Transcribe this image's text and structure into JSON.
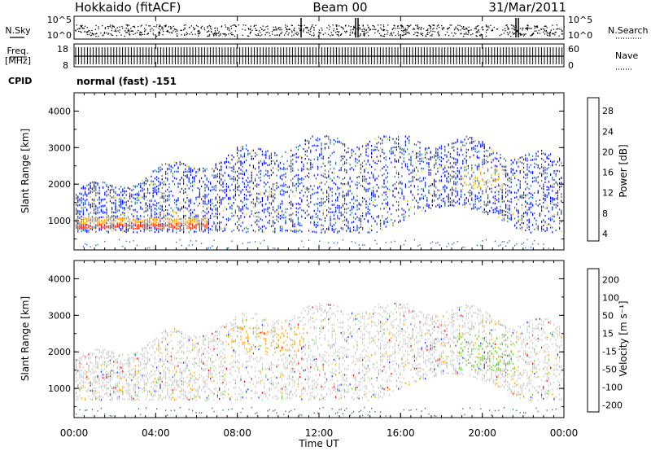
{
  "header": {
    "station": "Hokkaido (fitACF)",
    "beam": "Beam 00",
    "date": "31/Mar/2011"
  },
  "noise_panel": {
    "left_label": "N.Sky",
    "right_label": "N.Search",
    "left_ticks": [
      "10^5",
      "10^0"
    ],
    "right_ticks": [
      "10^5",
      "10^0"
    ]
  },
  "freq_panel": {
    "left_label_line1": "Freq.",
    "left_label_line2": "[MHz]",
    "right_label": "Nave",
    "left_ticks": [
      "18",
      "8"
    ],
    "right_ticks": [
      "60",
      "0"
    ]
  },
  "cpid": {
    "label": "CPID",
    "value": "normal (fast) -151"
  },
  "x_axis": {
    "label": "Time UT",
    "ticks": [
      "00:00",
      "04:00",
      "08:00",
      "12:00",
      "16:00",
      "20:00",
      "00:00"
    ],
    "range_hours": [
      0,
      24
    ]
  },
  "chart_data": [
    {
      "type": "heatmap",
      "quantity": "Power",
      "ylabel": "Slant Range [km]",
      "y_ticks": [
        1000,
        2000,
        3000,
        4000
      ],
      "ylim": [
        200,
        4500
      ],
      "colorbar": {
        "label": "Power [dB]",
        "ticks": [
          "28",
          "24",
          "20",
          "16",
          "12",
          "8",
          "4"
        ],
        "colors": [
          "#ff0000",
          "#ff6a00",
          "#ffa500",
          "#f2c800",
          "#2e8b57",
          "#1f5fbf",
          "#0000ff"
        ]
      },
      "features": [
        {
          "name": "strong near-range echo band",
          "time_h": [
            0,
            6.2
          ],
          "range_km": [
            800,
            1100
          ],
          "power_db": 22
        },
        {
          "name": "broad backscatter region",
          "time_h": [
            0,
            24
          ],
          "range_km": [
            1100,
            3300
          ],
          "power_db": 6
        },
        {
          "name": "enhanced arc",
          "time_h": [
            19.0,
            20.8
          ],
          "range_km": [
            1900,
            2500
          ],
          "power_db": 18
        }
      ]
    },
    {
      "type": "heatmap",
      "quantity": "Velocity",
      "ylabel": "Slant Range [km]",
      "y_ticks": [
        1000,
        2000,
        3000,
        4000
      ],
      "ylim": [
        200,
        4500
      ],
      "colorbar": {
        "label": "Velocity [m s⁻¹]",
        "ticks": [
          "200",
          "100",
          "50",
          "15",
          "-15",
          "-50",
          "-100",
          "-200"
        ],
        "colors": [
          "#1e3cff",
          "#3b66c4",
          "#1e7a3c",
          "#66cc33",
          "#cccccc",
          "#ffa500",
          "#ff6a00",
          "#ff0000"
        ]
      },
      "features": [
        {
          "name": "ground/low velocity band",
          "time_h": [
            0,
            24
          ],
          "range_km": [
            800,
            3300
          ],
          "velocity_ms": 0
        },
        {
          "name": "negative velocity patch",
          "time_h": [
            7.5,
            11.5
          ],
          "range_km": [
            2000,
            2700
          ],
          "velocity_ms": -40
        },
        {
          "name": "positive velocity patch",
          "time_h": [
            18.8,
            21.5
          ],
          "range_km": [
            1500,
            2500
          ],
          "velocity_ms": 40
        }
      ]
    }
  ]
}
